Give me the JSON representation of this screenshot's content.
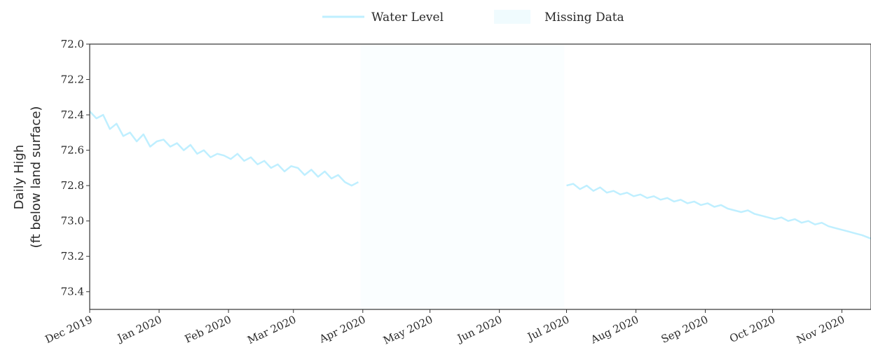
{
  "chart_data": {
    "type": "line",
    "ylabel": [
      "Daily High",
      "(ft below land surface)"
    ],
    "y_inverted": true,
    "ylim": [
      72.0,
      73.5
    ],
    "y_ticks": [
      "72.0",
      "72.2",
      "72.4",
      "72.6",
      "72.8",
      "73.0",
      "73.2",
      "73.4"
    ],
    "x_tick_labels": [
      "Dec 2019",
      "Jan 2020",
      "Feb 2020",
      "Mar 2020",
      "Apr 2020",
      "May 2020",
      "Jun 2020",
      "Jul 2020",
      "Aug 2020",
      "Sep 2020",
      "Oct 2020",
      "Nov 2020"
    ],
    "x_tick_dates": [
      "2019-12-01",
      "2020-01-01",
      "2020-02-01",
      "2020-03-01",
      "2020-04-01",
      "2020-05-01",
      "2020-06-01",
      "2020-07-01",
      "2020-08-01",
      "2020-09-01",
      "2020-10-01",
      "2020-11-01"
    ],
    "xlim": [
      "2019-12-01",
      "2020-11-14"
    ],
    "grid": false,
    "legend": {
      "placement": "top-center",
      "items": [
        {
          "label": "Water Level",
          "kind": "line",
          "color": "#bfefff"
        },
        {
          "label": "Missing Data",
          "kind": "band",
          "color": "#d4f4fc"
        }
      ]
    },
    "series": [
      {
        "name": "Water Level",
        "color": "#bfefff",
        "segments": [
          {
            "x": [
              "2019-12-01",
              "2019-12-04",
              "2019-12-07",
              "2019-12-10",
              "2019-12-13",
              "2019-12-16",
              "2019-12-19",
              "2019-12-22",
              "2019-12-25",
              "2019-12-28",
              "2019-12-31",
              "2020-01-03",
              "2020-01-06",
              "2020-01-09",
              "2020-01-12",
              "2020-01-15",
              "2020-01-18",
              "2020-01-21",
              "2020-01-24",
              "2020-01-27",
              "2020-01-30",
              "2020-02-02",
              "2020-02-05",
              "2020-02-08",
              "2020-02-11",
              "2020-02-14",
              "2020-02-17",
              "2020-02-20",
              "2020-02-23",
              "2020-02-26",
              "2020-02-29",
              "2020-03-03",
              "2020-03-06",
              "2020-03-09",
              "2020-03-12",
              "2020-03-15",
              "2020-03-18",
              "2020-03-21",
              "2020-03-24",
              "2020-03-27",
              "2020-03-30"
            ],
            "y": [
              72.38,
              72.42,
              72.4,
              72.48,
              72.45,
              72.52,
              72.5,
              72.55,
              72.51,
              72.58,
              72.55,
              72.54,
              72.58,
              72.56,
              72.6,
              72.57,
              72.62,
              72.6,
              72.64,
              72.62,
              72.63,
              72.65,
              72.62,
              72.66,
              72.64,
              72.68,
              72.66,
              72.7,
              72.68,
              72.72,
              72.69,
              72.7,
              72.74,
              72.71,
              72.75,
              72.72,
              72.76,
              72.74,
              72.78,
              72.8,
              72.78
            ]
          },
          {
            "x": [
              "2020-07-01",
              "2020-07-04",
              "2020-07-07",
              "2020-07-10",
              "2020-07-13",
              "2020-07-16",
              "2020-07-19",
              "2020-07-22",
              "2020-07-25",
              "2020-07-28",
              "2020-07-31",
              "2020-08-03",
              "2020-08-06",
              "2020-08-09",
              "2020-08-12",
              "2020-08-15",
              "2020-08-18",
              "2020-08-21",
              "2020-08-24",
              "2020-08-27",
              "2020-08-30",
              "2020-09-02",
              "2020-09-05",
              "2020-09-08",
              "2020-09-11",
              "2020-09-14",
              "2020-09-17",
              "2020-09-20",
              "2020-09-23",
              "2020-09-26",
              "2020-09-29",
              "2020-10-02",
              "2020-10-05",
              "2020-10-08",
              "2020-10-11",
              "2020-10-14",
              "2020-10-17",
              "2020-10-20",
              "2020-10-23",
              "2020-10-26",
              "2020-10-29",
              "2020-11-01",
              "2020-11-04",
              "2020-11-07",
              "2020-11-10",
              "2020-11-14"
            ],
            "y": [
              72.8,
              72.79,
              72.82,
              72.8,
              72.83,
              72.81,
              72.84,
              72.83,
              72.85,
              72.84,
              72.86,
              72.85,
              72.87,
              72.86,
              72.88,
              72.87,
              72.89,
              72.88,
              72.9,
              72.89,
              72.91,
              72.9,
              72.92,
              72.91,
              72.93,
              72.94,
              72.95,
              72.94,
              72.96,
              72.97,
              72.98,
              72.99,
              72.98,
              73.0,
              72.99,
              73.01,
              73.0,
              73.02,
              73.01,
              73.03,
              73.04,
              73.05,
              73.06,
              73.07,
              73.08,
              73.1
            ]
          }
        ]
      }
    ],
    "missing_range": [
      "2020-03-31",
      "2020-06-30"
    ]
  }
}
